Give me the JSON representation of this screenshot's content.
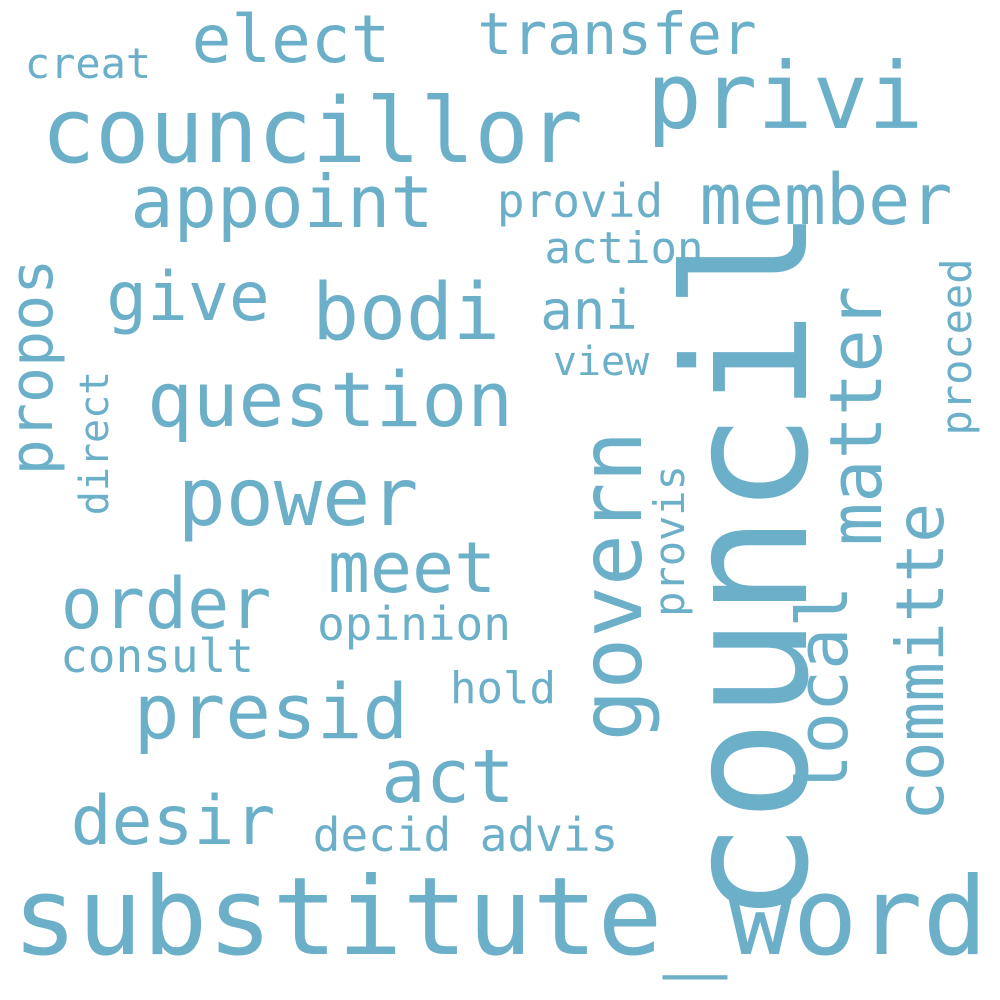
{
  "palette": {
    "background": "#ffffff",
    "word_color": "#6bafc9"
  },
  "words": {
    "substitute_word": "substitute_word",
    "council": "council",
    "councillor": "councillor",
    "privi": "privi",
    "appoint": "appoint",
    "member": "member",
    "bodi": "bodi",
    "question": "question",
    "power": "power",
    "govern": "govern",
    "matter": "matter",
    "local": "local",
    "committe": "committe",
    "presid": "presid",
    "order": "order",
    "act": "act",
    "desir": "desir",
    "meet": "meet",
    "elect": "elect",
    "transfer": "transfer",
    "give": "give",
    "propos": "propos",
    "ani": "ani",
    "creat": "creat",
    "provid": "provid",
    "action": "action",
    "view": "view",
    "direct": "direct",
    "proceed": "proceed",
    "provis": "provis",
    "opinion": "opinion",
    "consult": "consult",
    "hold": "hold",
    "decid": "decid",
    "advis": "advis"
  }
}
